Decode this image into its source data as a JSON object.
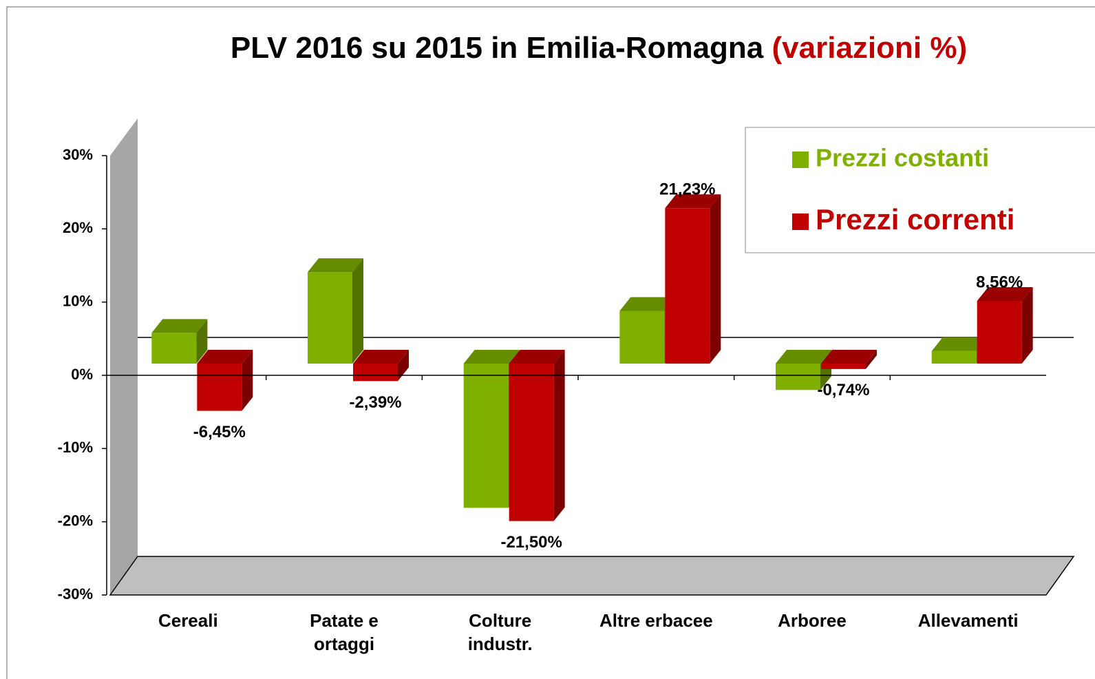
{
  "chart_data": {
    "type": "bar3d",
    "title": "PLV 2016 su 2015 in Emilia-Romagna",
    "title_highlight": "(variazioni %)",
    "categories": [
      [
        "Cereali"
      ],
      [
        "Patate e",
        "ortaggi"
      ],
      [
        "Colture",
        "industr."
      ],
      [
        "Altre erbacee"
      ],
      [
        "Arboree"
      ],
      [
        "Allevamenti"
      ]
    ],
    "series": [
      {
        "name": "Prezzi costanti",
        "color": "#7fb000",
        "values": [
          4.2,
          12.5,
          -19.7,
          7.2,
          -3.6,
          1.7
        ]
      },
      {
        "name": "Prezzi correnti",
        "color": "#c00000",
        "values": [
          -6.45,
          -2.39,
          -21.5,
          21.23,
          -0.74,
          8.56
        ],
        "value_labels": [
          "-6,45%",
          "-2,39%",
          "-21,50%",
          "21,23%",
          "-0,74%",
          "8,56%"
        ]
      }
    ],
    "ylim": [
      -30,
      30
    ],
    "yticks": [
      {
        "value": -30,
        "label": "-30%"
      },
      {
        "value": -20,
        "label": "-20%"
      },
      {
        "value": -10,
        "label": "-10%"
      },
      {
        "value": 0,
        "label": "0%"
      },
      {
        "value": 10,
        "label": "10%"
      },
      {
        "value": 20,
        "label": "20%"
      },
      {
        "value": 30,
        "label": "30%"
      }
    ],
    "legend": "top-right"
  }
}
